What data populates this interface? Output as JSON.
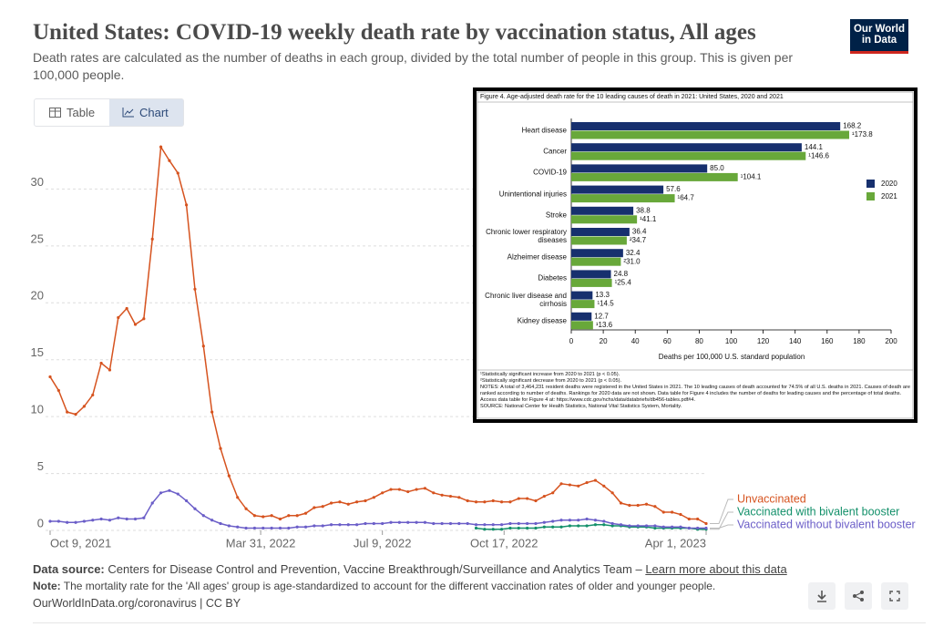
{
  "chart_data": [
    {
      "type": "line",
      "title": "United States: COVID-19 weekly death rate by vaccination status, All ages",
      "subtitle": "Death rates are calculated as the number of deaths in each group, divided by the total number of people in this group. This is given per 100,000 people.",
      "x": [
        "2021-10-09",
        "2021-10-16",
        "2021-10-23",
        "2021-10-30",
        "2021-11-06",
        "2021-11-13",
        "2021-11-20",
        "2021-11-27",
        "2021-12-04",
        "2021-12-11",
        "2021-12-18",
        "2021-12-25",
        "2022-01-01",
        "2022-01-08",
        "2022-01-15",
        "2022-01-22",
        "2022-01-29",
        "2022-02-05",
        "2022-02-12",
        "2022-02-19",
        "2022-02-26",
        "2022-03-05",
        "2022-03-12",
        "2022-03-19",
        "2022-03-26",
        "2022-04-02",
        "2022-04-09",
        "2022-04-16",
        "2022-04-23",
        "2022-04-30",
        "2022-05-07",
        "2022-05-14",
        "2022-05-21",
        "2022-05-28",
        "2022-06-04",
        "2022-06-11",
        "2022-06-18",
        "2022-06-25",
        "2022-07-02",
        "2022-07-09",
        "2022-07-16",
        "2022-07-23",
        "2022-07-30",
        "2022-08-06",
        "2022-08-13",
        "2022-08-20",
        "2022-08-27",
        "2022-09-03",
        "2022-09-10",
        "2022-09-17",
        "2022-09-24",
        "2022-10-01",
        "2022-10-08",
        "2022-10-15",
        "2022-10-22",
        "2022-10-29",
        "2022-11-05",
        "2022-11-12",
        "2022-11-19",
        "2022-11-26",
        "2022-12-03",
        "2022-12-10",
        "2022-12-17",
        "2022-12-24",
        "2022-12-31",
        "2023-01-07",
        "2023-01-14",
        "2023-01-21",
        "2023-01-28",
        "2023-02-04",
        "2023-02-11",
        "2023-02-18",
        "2023-02-25",
        "2023-03-04",
        "2023-03-11",
        "2023-03-18",
        "2023-03-25",
        "2023-04-01"
      ],
      "series": [
        {
          "name": "Unvaccinated",
          "color": "#d6531f",
          "values": [
            13.5,
            12.3,
            10.4,
            10.2,
            10.9,
            11.9,
            14.7,
            14.1,
            18.7,
            19.5,
            18.1,
            18.6,
            25.6,
            33.7,
            32.5,
            31.4,
            28.6,
            21.2,
            16.2,
            10.4,
            7.2,
            4.8,
            2.9,
            1.9,
            1.3,
            1.2,
            1.3,
            1.0,
            1.3,
            1.3,
            1.5,
            2.0,
            2.1,
            2.4,
            2.5,
            2.3,
            2.5,
            2.6,
            2.9,
            3.3,
            3.6,
            3.6,
            3.4,
            3.6,
            3.7,
            3.3,
            3.1,
            3.0,
            2.9,
            2.6,
            2.5,
            2.5,
            2.6,
            2.5,
            2.5,
            2.8,
            2.8,
            2.6,
            3.0,
            3.3,
            4.1,
            4.0,
            3.9,
            4.2,
            4.4,
            3.9,
            3.3,
            2.4,
            2.2,
            2.2,
            2.3,
            2.1,
            1.6,
            1.6,
            1.4,
            1.0,
            1.0,
            0.6
          ]
        },
        {
          "name": "Vaccinated with bivalent booster",
          "color": "#13906a",
          "values": [
            null,
            null,
            null,
            null,
            null,
            null,
            null,
            null,
            null,
            null,
            null,
            null,
            null,
            null,
            null,
            null,
            null,
            null,
            null,
            null,
            null,
            null,
            null,
            null,
            null,
            null,
            null,
            null,
            null,
            null,
            null,
            null,
            null,
            null,
            null,
            null,
            null,
            null,
            null,
            null,
            null,
            null,
            null,
            null,
            null,
            null,
            null,
            null,
            null,
            null,
            0.2,
            0.1,
            0.1,
            0.1,
            0.2,
            0.2,
            0.2,
            0.2,
            0.3,
            0.3,
            0.3,
            0.4,
            0.4,
            0.4,
            0.5,
            0.5,
            0.4,
            0.4,
            0.3,
            0.3,
            0.3,
            0.2,
            0.2,
            0.2,
            0.2,
            0.2,
            0.1,
            0.1
          ]
        },
        {
          "name": "Vaccinated without bivalent booster",
          "color": "#6b5ec8",
          "values": [
            0.8,
            0.8,
            0.7,
            0.7,
            0.8,
            0.9,
            1.0,
            0.9,
            1.1,
            1.0,
            1.0,
            1.1,
            2.4,
            3.3,
            3.5,
            3.2,
            2.6,
            1.9,
            1.3,
            0.9,
            0.6,
            0.4,
            0.3,
            0.2,
            0.2,
            0.2,
            0.2,
            0.2,
            0.2,
            0.3,
            0.3,
            0.4,
            0.4,
            0.5,
            0.5,
            0.5,
            0.5,
            0.6,
            0.6,
            0.6,
            0.7,
            0.7,
            0.7,
            0.7,
            0.7,
            0.6,
            0.6,
            0.6,
            0.6,
            0.6,
            0.5,
            0.5,
            0.5,
            0.5,
            0.6,
            0.6,
            0.6,
            0.6,
            0.7,
            0.8,
            0.9,
            0.9,
            0.9,
            1.0,
            0.9,
            0.8,
            0.6,
            0.5,
            0.4,
            0.4,
            0.4,
            0.4,
            0.3,
            0.3,
            0.3,
            0.2,
            0.2,
            0.2
          ]
        }
      ],
      "xlim": [
        "2021-10-09",
        "2023-04-01"
      ],
      "xticks": [
        {
          "value": "2021-10-09",
          "label": "Oct 9, 2021"
        },
        {
          "value": "2022-03-31",
          "label": "Mar 31, 2022"
        },
        {
          "value": "2022-07-09",
          "label": "Jul 9, 2022"
        },
        {
          "value": "2022-10-17",
          "label": "Oct 17, 2022"
        },
        {
          "value": "2023-04-01",
          "label": "Apr 1, 2023"
        }
      ],
      "ylim": [
        0,
        35
      ],
      "yticks": [
        0,
        5,
        10,
        15,
        20,
        25,
        30
      ],
      "grid": true
    },
    {
      "type": "barh",
      "title": "Figure 4. Age-adjusted death rate for the 10 leading causes of death in 2021: United States, 2020 and 2021",
      "categories": [
        "Heart disease",
        "Cancer",
        "COVID-19",
        "Unintentional injuries",
        "Stroke",
        "Chronic lower respiratory diseases",
        "Alzheimer disease",
        "Diabetes",
        "Chronic liver disease and cirrhosis",
        "Kidney disease"
      ],
      "series": [
        {
          "name": "2020",
          "color": "#17306e",
          "values": [
            168.2,
            144.1,
            85.0,
            57.6,
            38.8,
            36.4,
            32.4,
            24.8,
            13.3,
            12.7
          ],
          "value_labels": [
            "168.2",
            "144.1",
            "85.0",
            "57.6",
            "38.8",
            "36.4",
            "32.4",
            "24.8",
            "13.3",
            "12.7"
          ]
        },
        {
          "name": "2021",
          "color": "#68a83a",
          "values": [
            173.8,
            146.6,
            104.1,
            64.7,
            41.1,
            34.7,
            31.0,
            25.4,
            14.5,
            13.6
          ],
          "value_labels": [
            "¹173.8",
            "¹146.6",
            "¹104.1",
            "¹64.7",
            "¹41.1",
            "²34.7",
            "²31.0",
            "¹25.4",
            "¹14.5",
            "¹13.6"
          ]
        }
      ],
      "xlim": [
        0,
        200
      ],
      "xticks": [
        0,
        20,
        40,
        60,
        80,
        100,
        120,
        140,
        160,
        180,
        200
      ],
      "xlabel": "Deaths per 100,000 U.S. standard population",
      "legend": "right",
      "notes": [
        "¹Statistically significant increase from 2020 to 2021 (p < 0.05).",
        "²Statistically significant decrease from 2020 to 2021 (p < 0.05).",
        "NOTES: A total of 3,464,231 resident deaths were registered in the United States in 2021. The 10 leading causes of death accounted for 74.5% of all U.S. deaths in 2021. Causes of death are ranked according to number of deaths. Rankings for 2020 data are not shown. Data table for Figure 4 includes the number of deaths for leading causes and the percentage of total deaths. Access data table for Figure 4 at: https://www.cdc.gov/nchs/data/databriefs/db456-tables.pdf#4.",
        "SOURCE: National Center for Health Statistics, National Vital Statistics System, Mortality."
      ]
    }
  ],
  "logo": [
    "Our World",
    "in Data"
  ],
  "tabs": [
    "Table",
    "Chart"
  ],
  "footer": {
    "source_label": "Data source:",
    "source": "Centers for Disease Control and Prevention, Vaccine Breakthrough/Surveillance and Analytics Team",
    "separator": "–",
    "learn_more": "Learn more about this data",
    "note_label": "Note:",
    "note": "The mortality rate for the 'All ages' group is age-standardized to account for the different vaccination rates of older and younger people.",
    "credit": "OurWorldInData.org/coronavirus | CC BY"
  }
}
